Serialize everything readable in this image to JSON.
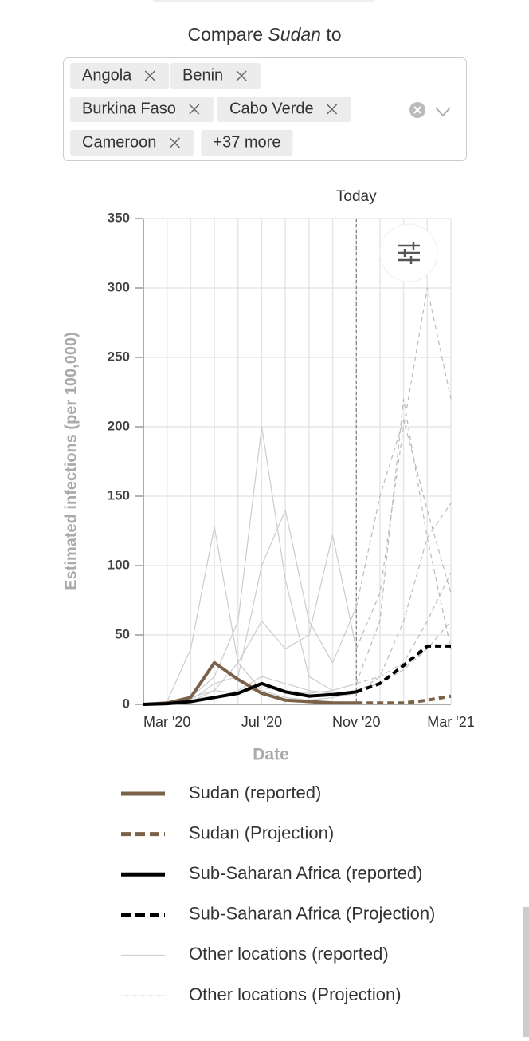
{
  "header": {
    "prefix": "Compare",
    "country": "Sudan",
    "suffix": "to"
  },
  "selector": {
    "tags": [
      "Angola",
      "Benin",
      "Burkina Faso",
      "Cabo Verde",
      "Cameroon"
    ],
    "more": "+37 more"
  },
  "chart_data": {
    "type": "line",
    "annotation": {
      "text": "Today",
      "x": "Nov '20"
    },
    "x_label": "Date",
    "y_label": "Estimated infections (per 100,000)",
    "categories": [
      null,
      "Mar '20",
      null,
      null,
      null,
      "Jul '20",
      null,
      null,
      null,
      "Nov '20",
      null,
      null,
      null,
      "Mar '21"
    ],
    "ylim": [
      0,
      350
    ],
    "yticks": [
      0,
      50,
      100,
      150,
      200,
      250,
      300,
      350
    ],
    "grid": true,
    "series": [
      {
        "name": "Sudan (reported)",
        "color": "#7a6148",
        "dashed": false,
        "values": [
          0,
          1,
          5,
          30,
          18,
          8,
          3,
          2,
          1,
          1,
          null,
          null,
          null,
          null
        ]
      },
      {
        "name": "Sudan (Projection)",
        "color": "#7a6148",
        "dashed": true,
        "values": [
          null,
          null,
          null,
          null,
          null,
          null,
          null,
          null,
          null,
          1,
          1,
          1,
          3,
          6
        ]
      },
      {
        "name": "Sub-Saharan Africa (reported)",
        "color": "#000000",
        "dashed": false,
        "values": [
          0,
          0.5,
          2,
          5,
          8,
          15,
          9,
          6,
          7,
          9,
          null,
          null,
          null,
          null
        ]
      },
      {
        "name": "Sub-Saharan Africa (Projection)",
        "color": "#000000",
        "dashed": true,
        "values": [
          null,
          null,
          null,
          null,
          null,
          null,
          null,
          null,
          null,
          9,
          15,
          28,
          42,
          42
        ]
      },
      {
        "name": "Other locations (reported)",
        "color": "#cccccc",
        "dashed": false,
        "lines": [
          [
            0,
            2,
            40,
            128,
            30,
            10,
            5,
            3,
            5,
            8,
            null,
            null,
            null,
            null
          ],
          [
            0,
            0,
            5,
            20,
            60,
            200,
            90,
            20,
            10,
            15,
            null,
            null,
            null,
            null
          ],
          [
            0,
            0,
            2,
            10,
            30,
            60,
            40,
            50,
            122,
            40,
            null,
            null,
            null,
            null
          ],
          [
            0,
            0,
            3,
            15,
            20,
            100,
            140,
            60,
            30,
            70,
            null,
            null,
            null,
            null
          ],
          [
            0,
            1,
            5,
            10,
            8,
            12,
            10,
            8,
            10,
            15,
            null,
            null,
            null,
            null
          ],
          [
            0,
            0,
            2,
            5,
            10,
            20,
            15,
            10,
            8,
            10,
            null,
            null,
            null,
            null
          ]
        ]
      },
      {
        "name": "Other locations (Projection)",
        "color": "#bbbbbb",
        "dashed": true,
        "lines": [
          [
            null,
            null,
            null,
            null,
            null,
            null,
            null,
            null,
            null,
            8,
            20,
            60,
            120,
            145
          ],
          [
            null,
            null,
            null,
            null,
            null,
            null,
            null,
            null,
            null,
            15,
            60,
            220,
            120,
            40
          ],
          [
            null,
            null,
            null,
            null,
            null,
            null,
            null,
            null,
            null,
            40,
            80,
            200,
            300,
            220
          ],
          [
            null,
            null,
            null,
            null,
            null,
            null,
            null,
            null,
            null,
            70,
            150,
            205,
            140,
            80
          ],
          [
            null,
            null,
            null,
            null,
            null,
            null,
            null,
            null,
            null,
            15,
            20,
            30,
            60,
            95
          ],
          [
            null,
            null,
            null,
            null,
            null,
            null,
            null,
            null,
            null,
            10,
            15,
            25,
            40,
            60
          ]
        ]
      }
    ]
  }
}
